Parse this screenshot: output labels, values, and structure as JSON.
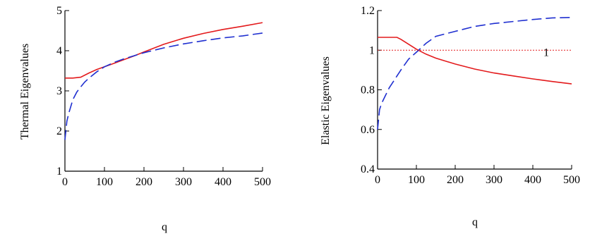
{
  "chart_data": [
    {
      "type": "line",
      "xlabel": "q",
      "ylabel": "Thermal Eigenvalues",
      "xlim": [
        0,
        500
      ],
      "ylim": [
        1,
        5
      ],
      "x_ticks": [
        "0",
        "100",
        "200",
        "300",
        "400",
        "500"
      ],
      "y_ticks": [
        "1",
        "2",
        "3",
        "4",
        "5"
      ],
      "grid": false,
      "series": [
        {
          "color": "#e31a1c",
          "style": "solid",
          "x": [
            0,
            20,
            40,
            60,
            80,
            100,
            125,
            150,
            175,
            200,
            250,
            300,
            350,
            400,
            450,
            500
          ],
          "y": [
            3.32,
            3.32,
            3.34,
            3.44,
            3.53,
            3.6,
            3.69,
            3.78,
            3.87,
            3.97,
            4.16,
            4.31,
            4.43,
            4.53,
            4.61,
            4.7
          ]
        },
        {
          "color": "#1f2fd0",
          "style": "dashed",
          "x": [
            0,
            5,
            10,
            20,
            30,
            40,
            50,
            60,
            80,
            100,
            125,
            150,
            200,
            250,
            300,
            350,
            400,
            450,
            500
          ],
          "y": [
            1.78,
            2.25,
            2.45,
            2.78,
            2.97,
            3.1,
            3.22,
            3.31,
            3.47,
            3.6,
            3.71,
            3.8,
            3.95,
            4.07,
            4.17,
            4.25,
            4.32,
            4.37,
            4.44
          ]
        }
      ]
    },
    {
      "type": "line",
      "xlabel": "q",
      "ylabel": "Elastic Eigenvalues",
      "xlim": [
        0,
        500
      ],
      "ylim": [
        0.4,
        1.2
      ],
      "x_ticks": [
        "0",
        "100",
        "200",
        "300",
        "400",
        "500"
      ],
      "y_ticks": [
        "0.4",
        "0.6",
        "0.8",
        "1",
        "1.2"
      ],
      "grid": false,
      "annotation": "1",
      "series": [
        {
          "color": "#e31a1c",
          "style": "solid",
          "x": [
            0,
            20,
            40,
            50,
            60,
            80,
            100,
            125,
            150,
            200,
            250,
            300,
            350,
            400,
            450,
            500
          ],
          "y": [
            1.065,
            1.065,
            1.065,
            1.065,
            1.055,
            1.03,
            1.005,
            0.98,
            0.96,
            0.93,
            0.905,
            0.885,
            0.87,
            0.855,
            0.842,
            0.83
          ]
        },
        {
          "color": "#1f2fd0",
          "style": "dashed",
          "x": [
            0,
            5,
            10,
            20,
            30,
            40,
            50,
            60,
            80,
            100,
            125,
            150,
            200,
            250,
            300,
            350,
            400,
            450,
            500
          ],
          "y": [
            0.6,
            0.7,
            0.73,
            0.77,
            0.81,
            0.84,
            0.87,
            0.9,
            0.955,
            0.99,
            1.035,
            1.07,
            1.095,
            1.12,
            1.135,
            1.145,
            1.155,
            1.163,
            1.165
          ]
        },
        {
          "color": "#e31a1c",
          "style": "dotted",
          "x": [
            0,
            500
          ],
          "y": [
            1,
            1
          ]
        }
      ]
    }
  ]
}
